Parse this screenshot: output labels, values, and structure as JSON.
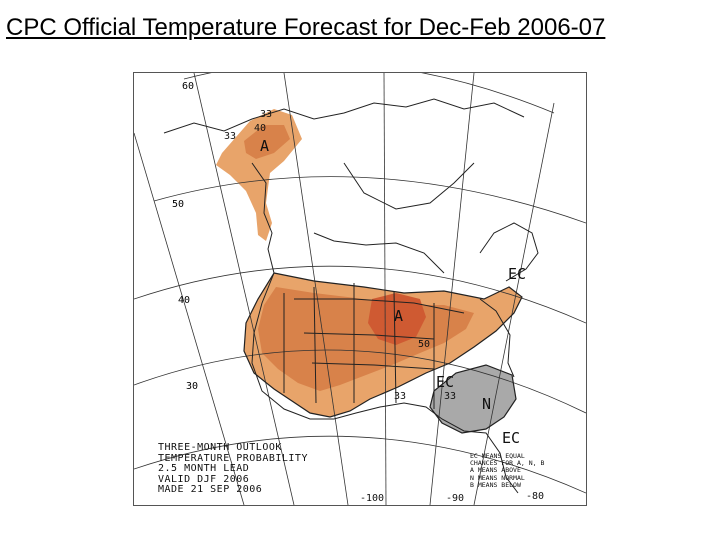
{
  "title": "CPC Official Temperature Forecast for Dec-Feb 2006-07",
  "map": {
    "latitude_labels": [
      "60",
      "50",
      "40",
      "30"
    ],
    "longitude_labels": [
      "-100",
      "-90",
      "-80"
    ],
    "contour_labels": {
      "alaska_33_top": "33",
      "alaska_33_left": "33",
      "alaska_40": "40",
      "great_lakes_50": "50",
      "plains_33": "33",
      "southeast_33": "33"
    },
    "zone_labels": {
      "alaska_above": "A",
      "great_lakes_above": "A",
      "northeast_ec": "EC",
      "south_ec": "EC",
      "southeast_normal": "N",
      "florida_ec": "EC"
    },
    "footer_lines": [
      "THREE-MONTH OUTLOOK",
      "TEMPERATURE PROBABILITY",
      "2.5 MONTH LEAD",
      "VALID DJF 2006",
      "MADE 21 SEP 2006"
    ],
    "legend_lines": [
      "EC MEANS EQUAL",
      "CHANCES FOR A, N, B",
      "A MEANS ABOVE",
      "N MEANS NORMAL",
      "B MEANS BELOW"
    ],
    "colors": {
      "above_33": "#e8a46a",
      "above_40": "#d8824a",
      "above_50": "#cf5a32",
      "normal": "#a9a9a9",
      "lines": "#222222"
    }
  }
}
